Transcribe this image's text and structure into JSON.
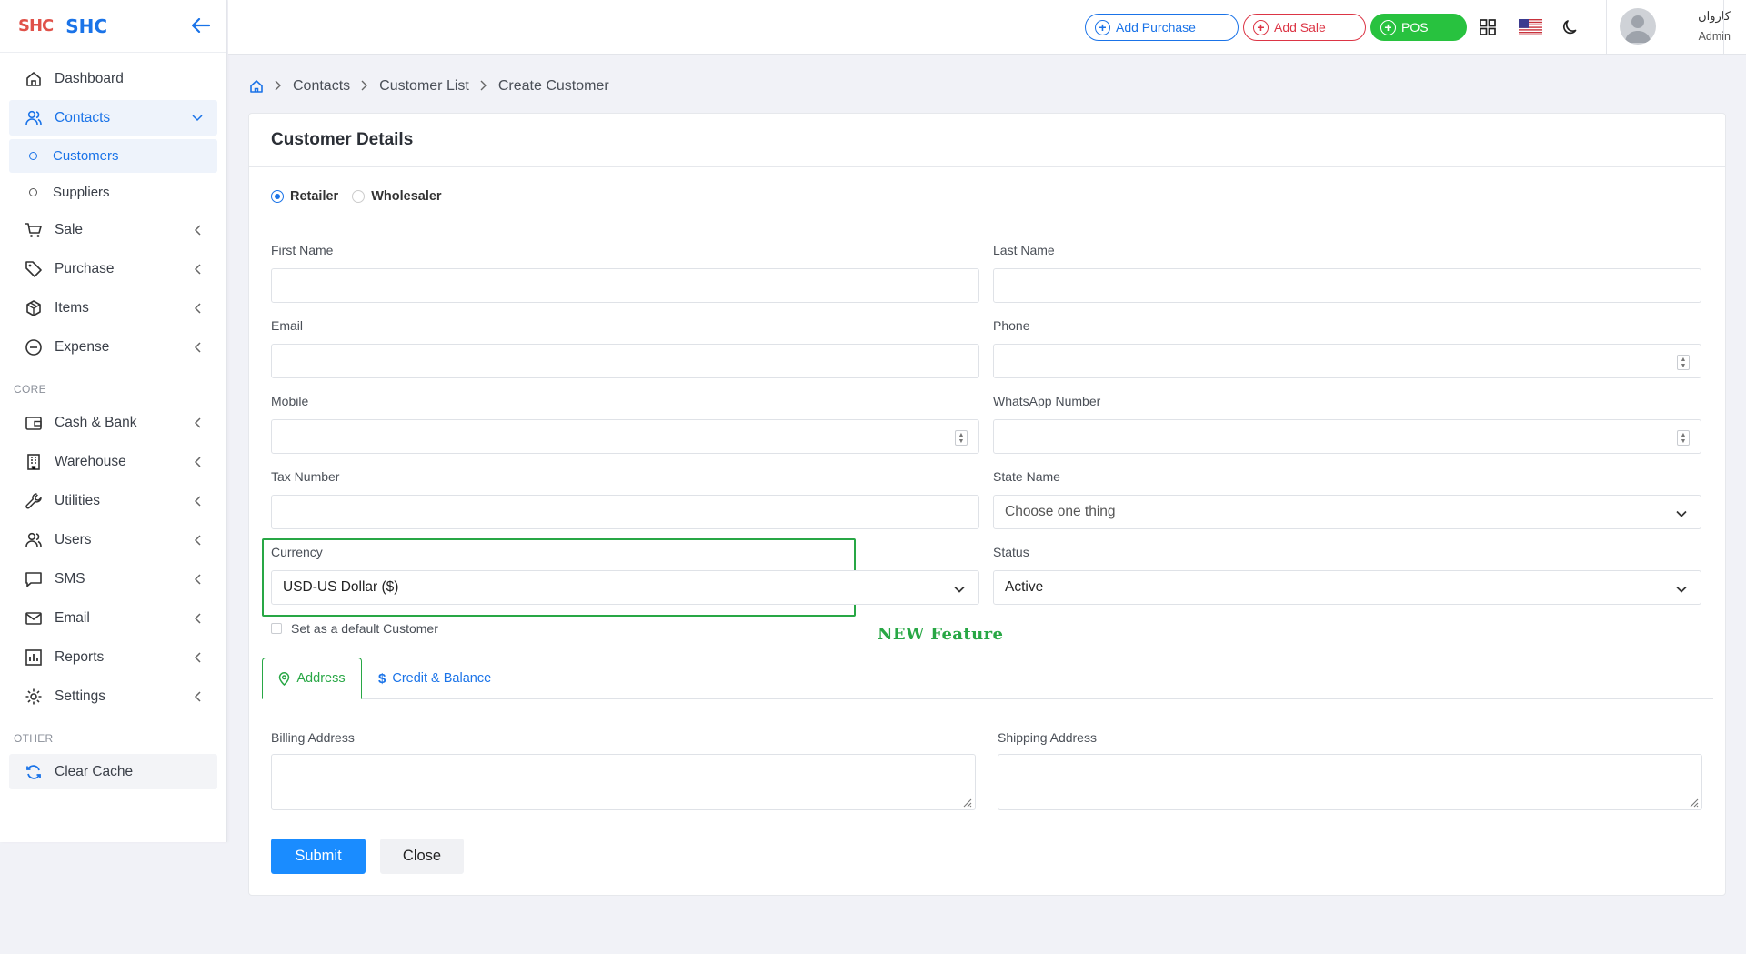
{
  "brand": {
    "logo": "SHC",
    "name": "SHC"
  },
  "sidebar": {
    "items": [
      {
        "label": "Dashboard"
      },
      {
        "label": "Contacts"
      },
      {
        "label": "Customers"
      },
      {
        "label": "Suppliers"
      },
      {
        "label": "Sale"
      },
      {
        "label": "Purchase"
      },
      {
        "label": "Items"
      },
      {
        "label": "Expense"
      },
      {
        "label": "Cash & Bank"
      },
      {
        "label": "Warehouse"
      },
      {
        "label": "Utilities"
      },
      {
        "label": "Users"
      },
      {
        "label": "SMS"
      },
      {
        "label": "Email"
      },
      {
        "label": "Reports"
      },
      {
        "label": "Settings"
      },
      {
        "label": "Clear Cache"
      }
    ],
    "sections": {
      "core": "CORE",
      "other": "OTHER"
    }
  },
  "topbar": {
    "add_purchase": "Add Purchase",
    "add_sale": "Add Sale",
    "pos": "POS",
    "user_name": "کاروان",
    "user_role": "Admin"
  },
  "breadcrumb": [
    "Contacts",
    "Customer List",
    "Create Customer"
  ],
  "card": {
    "title": "Customer Details",
    "customer_types": [
      "Retailer",
      "Wholesaler"
    ],
    "selected_type": "Retailer",
    "fields": {
      "first_name": "First Name",
      "last_name": "Last Name",
      "email": "Email",
      "phone": "Phone",
      "mobile": "Mobile",
      "whatsapp": "WhatsApp Number",
      "tax_number": "Tax Number",
      "state_name": "State Name",
      "currency": "Currency",
      "status": "Status"
    },
    "state_placeholder": "Choose one thing",
    "currency_value": "USD-US Dollar ($)",
    "status_value": "Active",
    "default_customer_label": "Set as a default Customer",
    "new_feature_note": "NEW Feature",
    "tabs": [
      "Address",
      "Credit & Balance"
    ],
    "billing_address": "Billing Address",
    "shipping_address": "Shipping Address",
    "submit": "Submit",
    "close": "Close"
  },
  "colors": {
    "primary": "#1a73e8",
    "danger": "#dc3545",
    "success": "#28c23f",
    "highlight": "#28a745"
  }
}
